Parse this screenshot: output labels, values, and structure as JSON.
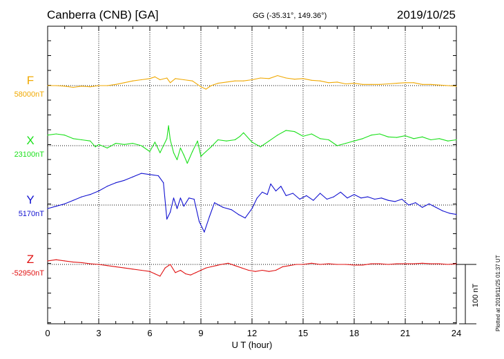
{
  "header": {
    "station": "Canberra (CNB)  [GA]",
    "coords": "GG (-35.31°, 149.36°)",
    "date": "2019/10/25"
  },
  "side_note": "Plotted at 2019/11/25 01:37 UT",
  "scale_label": "100 nT",
  "colors": {
    "F": "#f0a800",
    "X": "#18e018",
    "Y": "#1010d0",
    "Z": "#e01010"
  },
  "chart_data": {
    "type": "line",
    "xlabel": "U T (hour)",
    "xlim": [
      0,
      24
    ],
    "x_ticks": [
      "0",
      "3",
      "6",
      "9",
      "12",
      "15",
      "18",
      "21",
      "24"
    ],
    "scale_bar_nT": 100,
    "series": [
      {
        "name": "F",
        "baseline_label": "58000nT",
        "baseline": 58000,
        "x": [
          0,
          0.5,
          1,
          1.5,
          2,
          2.5,
          3,
          3.5,
          4,
          4.5,
          5,
          5.5,
          6,
          6.3,
          6.6,
          7,
          7.2,
          7.5,
          8,
          8.5,
          9,
          9.3,
          9.6,
          10,
          10.5,
          11,
          11.5,
          12,
          12.5,
          13,
          13.5,
          14,
          14.5,
          15,
          15.5,
          16,
          16.5,
          17,
          17.5,
          18,
          18.5,
          19,
          19.5,
          20,
          20.5,
          21,
          21.5,
          22,
          22.5,
          23,
          23.5,
          24
        ],
        "values": [
          0,
          0,
          -1,
          -3,
          -1,
          -2,
          0,
          0,
          2,
          5,
          8,
          10,
          12,
          15,
          10,
          13,
          5,
          12,
          10,
          8,
          -2,
          -6,
          0,
          4,
          6,
          8,
          8,
          10,
          13,
          12,
          17,
          13,
          11,
          12,
          9,
          8,
          5,
          6,
          3,
          4,
          2,
          2,
          2,
          3,
          4,
          5,
          5,
          2,
          2,
          1,
          0,
          -1
        ]
      },
      {
        "name": "X",
        "baseline_label": "23100nT",
        "baseline": 23100,
        "x": [
          0,
          0.5,
          1,
          1.5,
          2,
          2.5,
          2.8,
          3,
          3.5,
          4,
          4.5,
          5,
          5.5,
          6,
          6.3,
          6.6,
          7,
          7.1,
          7.2,
          7.4,
          7.6,
          7.8,
          8,
          8.2,
          8.5,
          8.8,
          9,
          9.3,
          9.6,
          10,
          10.5,
          11,
          11.3,
          11.5,
          12,
          12.5,
          13,
          13.5,
          14,
          14.5,
          15,
          15.5,
          16,
          16.5,
          17,
          17.5,
          18,
          18.5,
          19,
          19.5,
          20,
          20.5,
          21,
          21.5,
          22,
          22.5,
          23,
          23.5,
          24
        ],
        "values": [
          18,
          20,
          18,
          12,
          10,
          8,
          -2,
          2,
          -4,
          4,
          2,
          4,
          0,
          -10,
          6,
          -12,
          12,
          34,
          10,
          -12,
          -24,
          -4,
          -16,
          -30,
          -10,
          8,
          -18,
          -10,
          -2,
          10,
          8,
          10,
          16,
          22,
          6,
          -2,
          8,
          18,
          26,
          24,
          16,
          20,
          12,
          10,
          0,
          4,
          8,
          12,
          18,
          20,
          15,
          14,
          17,
          12,
          15,
          10,
          12,
          8,
          10
        ]
      },
      {
        "name": "Y",
        "baseline_label": "5170nT",
        "baseline": 5170,
        "x": [
          0,
          0.5,
          1,
          1.5,
          2,
          2.5,
          3,
          3.5,
          4,
          4.5,
          5,
          5.5,
          6,
          6.5,
          6.8,
          7,
          7.2,
          7.4,
          7.6,
          7.8,
          8,
          8.3,
          8.6,
          8.9,
          9.2,
          9.5,
          9.8,
          10.3,
          10.8,
          11.2,
          11.6,
          12,
          12.3,
          12.6,
          12.9,
          13.1,
          13.4,
          13.7,
          14,
          14.4,
          14.8,
          15.2,
          15.6,
          16,
          16.4,
          16.8,
          17.2,
          17.6,
          18,
          18.4,
          18.8,
          19.2,
          19.6,
          20,
          20.4,
          20.8,
          21.2,
          21.6,
          22,
          22.4,
          22.8,
          23.2,
          23.6,
          24
        ],
        "values": [
          -6,
          -2,
          2,
          8,
          14,
          18,
          24,
          32,
          38,
          42,
          48,
          54,
          52,
          50,
          38,
          -24,
          -12,
          12,
          -6,
          12,
          -2,
          12,
          10,
          -28,
          -46,
          -20,
          4,
          -4,
          -8,
          -16,
          -22,
          -6,
          12,
          22,
          18,
          36,
          24,
          32,
          16,
          20,
          10,
          16,
          8,
          20,
          10,
          14,
          22,
          12,
          18,
          12,
          14,
          10,
          12,
          8,
          6,
          10,
          0,
          4,
          -4,
          2,
          -4,
          -10,
          -14,
          -16
        ]
      },
      {
        "name": "Z",
        "baseline_label": "-52950nT",
        "baseline": -52950,
        "x": [
          0,
          0.5,
          1,
          1.5,
          2,
          2.5,
          3,
          3.5,
          4,
          4.5,
          5,
          5.5,
          6,
          6.3,
          6.6,
          6.9,
          7.2,
          7.5,
          7.8,
          8.1,
          8.4,
          8.7,
          9,
          9.3,
          9.6,
          9.9,
          10.2,
          10.6,
          11,
          11.4,
          11.8,
          12.2,
          12.6,
          13,
          13.4,
          13.8,
          14.2,
          14.6,
          15,
          15.5,
          16,
          16.5,
          17,
          17.5,
          18,
          18.5,
          19,
          19.5,
          20,
          20.5,
          21,
          21.5,
          22,
          22.5,
          23,
          23.5,
          24
        ],
        "values": [
          6,
          8,
          6,
          4,
          3,
          1,
          0,
          -2,
          -4,
          -6,
          -8,
          -10,
          -12,
          -16,
          -20,
          -6,
          0,
          -14,
          -10,
          -16,
          -18,
          -14,
          -10,
          -6,
          -4,
          -2,
          0,
          2,
          -2,
          -6,
          -10,
          -12,
          -10,
          -12,
          -10,
          -4,
          -2,
          0,
          0,
          2,
          0,
          1,
          0,
          0,
          -1,
          -1,
          1,
          1,
          0,
          1,
          1,
          1,
          2,
          1,
          1,
          0,
          1
        ]
      }
    ]
  }
}
